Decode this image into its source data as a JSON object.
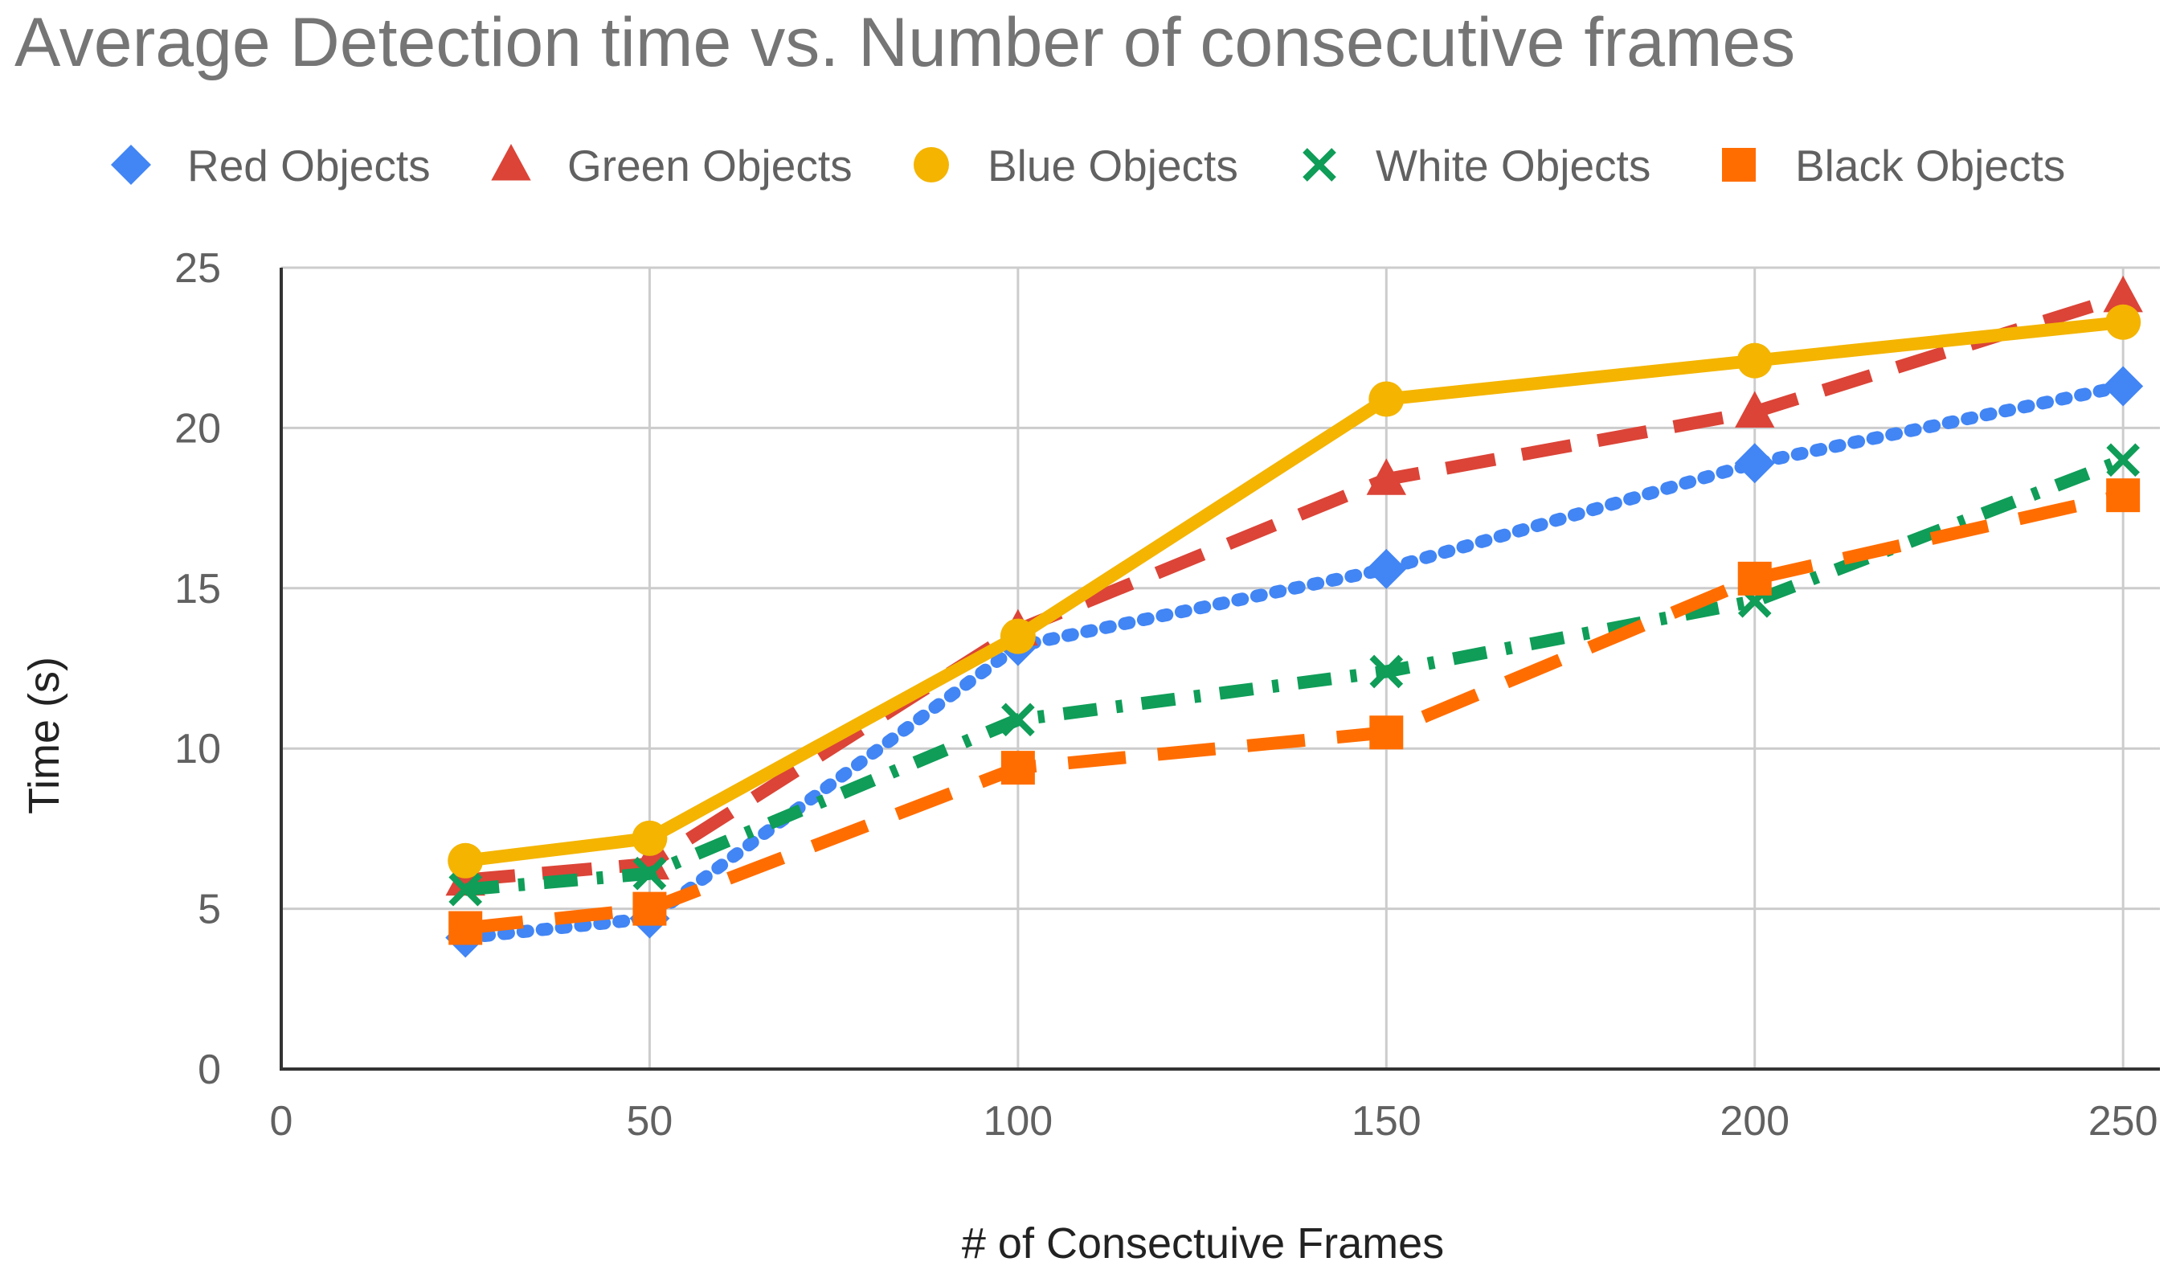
{
  "chart_data": {
    "type": "line",
    "title": "Average Detection time vs. Number of consecutive frames",
    "xlabel": "# of Consectuive Frames",
    "ylabel": "Time (s)",
    "xlim": [
      0,
      255
    ],
    "ylim": [
      0,
      25
    ],
    "x_ticks": [
      0,
      50,
      100,
      150,
      200,
      250
    ],
    "y_ticks": [
      0,
      5,
      10,
      15,
      20,
      25
    ],
    "grid": true,
    "legend_position": "top",
    "x": [
      25,
      50,
      100,
      150,
      200,
      250
    ],
    "series": [
      {
        "name": "Red Objects",
        "color": "#4285F4",
        "marker": "diamond",
        "line": "dotted",
        "values": [
          4.1,
          4.7,
          13.2,
          15.6,
          18.9,
          21.3
        ]
      },
      {
        "name": "Green Objects",
        "color": "#DB4437",
        "marker": "triangle",
        "line": "dashed",
        "values": [
          5.9,
          6.4,
          13.7,
          18.4,
          20.5,
          24.1
        ]
      },
      {
        "name": "Blue Objects",
        "color": "#F4B400",
        "marker": "circle",
        "line": "solid",
        "values": [
          6.5,
          7.2,
          13.5,
          20.9,
          22.1,
          23.3
        ]
      },
      {
        "name": "White Objects",
        "color": "#0F9D58",
        "marker": "x",
        "line": "dashdot",
        "values": [
          5.6,
          6.1,
          10.9,
          12.4,
          14.6,
          19.0
        ]
      },
      {
        "name": "Black Objects",
        "color": "#FF6D00",
        "marker": "square",
        "line": "longdash",
        "values": [
          4.4,
          5.0,
          9.4,
          10.5,
          15.3,
          17.9
        ]
      }
    ]
  }
}
